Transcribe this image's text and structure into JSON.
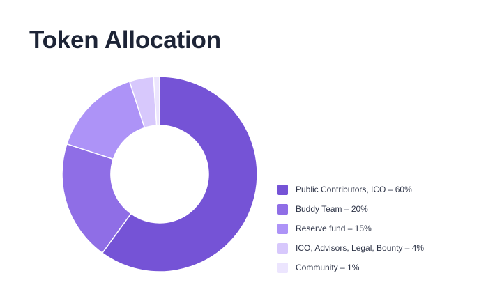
{
  "header": {
    "title": "Token Allocation"
  },
  "chart_data": {
    "type": "pie",
    "donut": true,
    "title": "Token Allocation",
    "categories": [
      "Public Contributors, ICO",
      "Buddy Team",
      "Reserve fund",
      "ICO, Advisors, Legal, Bounty",
      "Community"
    ],
    "values": [
      60,
      20,
      15,
      4,
      1
    ],
    "unit": "%",
    "colors": [
      "#7553d6",
      "#8f6ee6",
      "#ad93f7",
      "#d7c8fc",
      "#ece5fe"
    ],
    "legend_labels": [
      "Public Contributors, ICO – 60%",
      "Buddy Team – 20%",
      "Reserve fund – 15%",
      "ICO, Advisors, Legal, Bounty – 4%",
      "Community – 1%"
    ],
    "legend_position": "right"
  }
}
